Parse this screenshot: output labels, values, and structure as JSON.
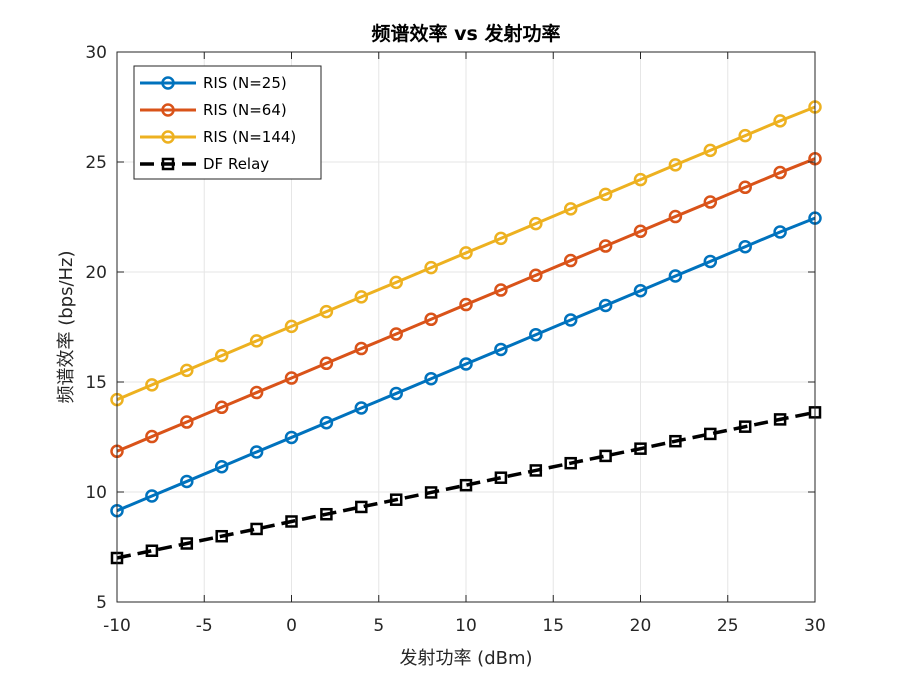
{
  "chart_data": {
    "type": "line",
    "title": "频谱效率 vs 发射功率",
    "xlabel": "发射功率 (dBm)",
    "ylabel": "频谱效率 (bps/Hz)",
    "xlim": [
      -10,
      30
    ],
    "ylim": [
      5,
      30
    ],
    "xticks": [
      -10,
      -5,
      0,
      5,
      10,
      15,
      20,
      25,
      30
    ],
    "yticks": [
      5,
      10,
      15,
      20,
      25,
      30
    ],
    "grid": true,
    "legend_position": "top-left",
    "x": [
      -10,
      -8,
      -6,
      -4,
      -2,
      0,
      2,
      4,
      6,
      8,
      10,
      12,
      14,
      16,
      18,
      20,
      22,
      24,
      26,
      28,
      30
    ],
    "series": [
      {
        "name": "RIS (N=25)",
        "color": "#0072BD",
        "marker": "circle",
        "dashed": false,
        "values": [
          9.15,
          9.82,
          10.48,
          11.15,
          11.82,
          12.48,
          13.15,
          13.82,
          14.48,
          15.15,
          15.82,
          16.48,
          17.15,
          17.82,
          18.48,
          19.15,
          19.82,
          20.48,
          21.15,
          21.82,
          22.45
        ]
      },
      {
        "name": "RIS (N=64)",
        "color": "#D95319",
        "marker": "circle",
        "dashed": false,
        "values": [
          11.85,
          12.52,
          13.18,
          13.85,
          14.52,
          15.18,
          15.85,
          16.52,
          17.18,
          17.85,
          18.52,
          19.18,
          19.85,
          20.52,
          21.18,
          21.85,
          22.52,
          23.18,
          23.85,
          24.52,
          25.15
        ]
      },
      {
        "name": "RIS (N=144)",
        "color": "#EDB120",
        "marker": "circle",
        "dashed": false,
        "values": [
          14.2,
          14.87,
          15.53,
          16.2,
          16.87,
          17.53,
          18.2,
          18.87,
          19.53,
          20.2,
          20.87,
          21.53,
          22.2,
          22.87,
          23.53,
          24.2,
          24.87,
          25.53,
          26.2,
          26.87,
          27.5
        ]
      },
      {
        "name": "DF Relay",
        "color": "#000000",
        "marker": "square",
        "dashed": true,
        "values": [
          7.0,
          7.33,
          7.66,
          7.99,
          8.32,
          8.66,
          8.99,
          9.32,
          9.65,
          9.98,
          10.31,
          10.65,
          10.98,
          11.31,
          11.64,
          11.97,
          12.31,
          12.64,
          12.97,
          13.3,
          13.62
        ]
      }
    ]
  }
}
